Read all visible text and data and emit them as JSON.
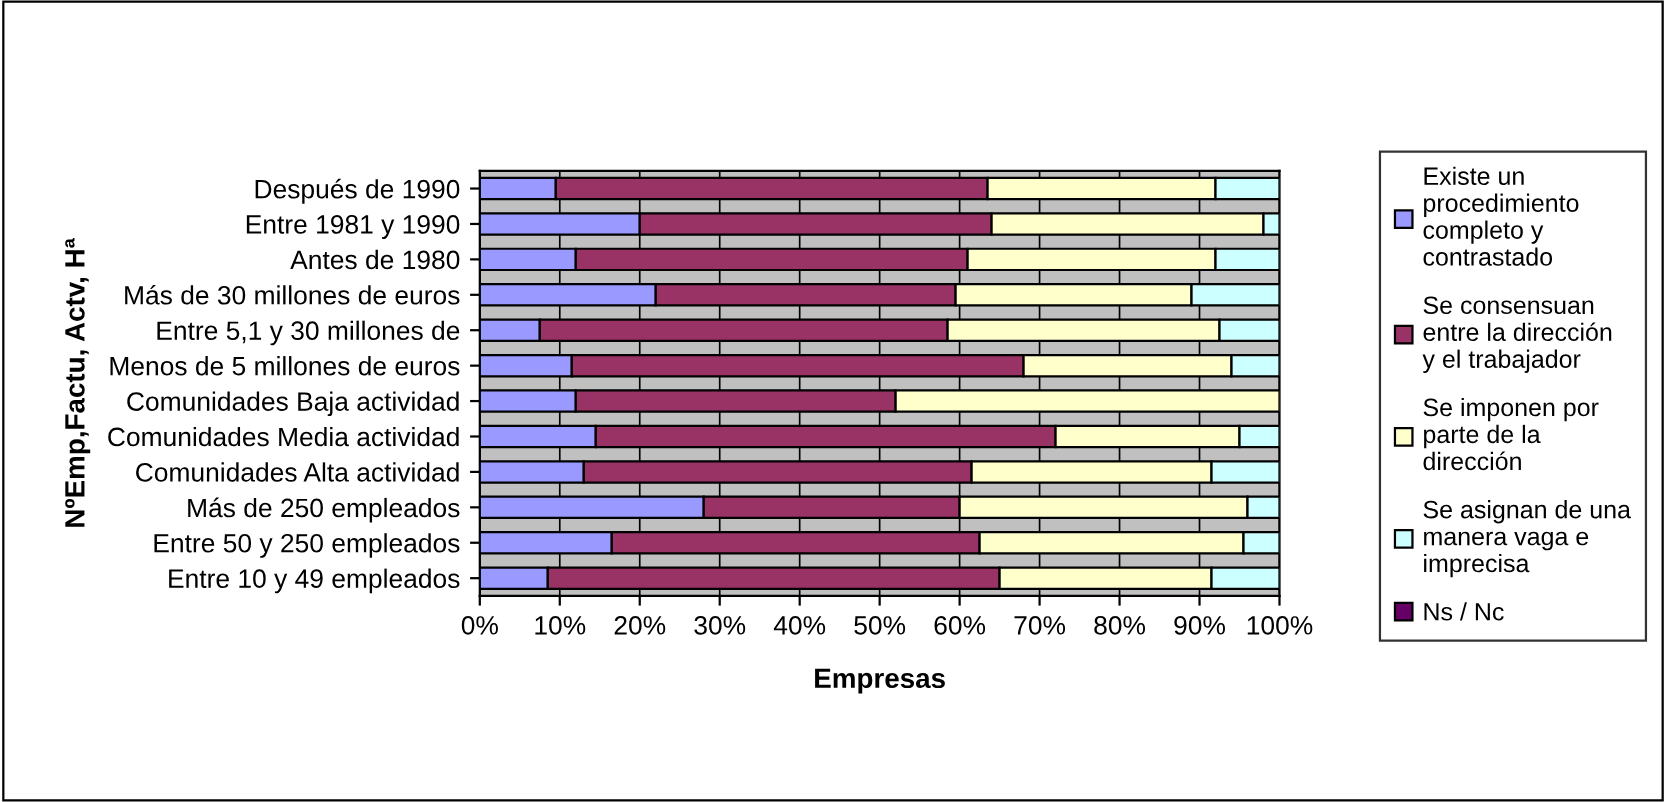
{
  "chart_data": {
    "type": "bar",
    "orientation": "horizontal",
    "stacked": true,
    "xlabel": "Empresas",
    "ylabel": "NºEmp,Factu, Actv, Hª",
    "categories": [
      "Después de 1990",
      "Entre 1981 y 1990",
      "Antes de 1980",
      "Más de 30 millones de euros",
      "Entre 5,1 y 30 millones de",
      "Menos de 5 millones de euros",
      "Comunidades Baja actividad",
      "Comunidades Media actividad",
      "Comunidades Alta actividad",
      "Más de 250 empleados",
      "Entre 50 y 250 empleados",
      "Entre 10 y 49 empleados"
    ],
    "series": [
      {
        "name": "Existe un procedimiento completo y contrastado",
        "color": "#9999ff",
        "values": [
          9.5,
          20,
          12,
          22,
          7.5,
          11.5,
          12,
          14.5,
          13,
          28,
          16.5,
          8.5
        ]
      },
      {
        "name": "Se consensuan entre la dirección y el trabajador",
        "color": "#993366",
        "values": [
          54,
          44,
          49,
          37.5,
          51,
          56.5,
          40,
          57.5,
          48.5,
          32,
          46,
          56.5
        ]
      },
      {
        "name": "Se imponen por parte de la dirección",
        "color": "#ffffcc",
        "values": [
          28.5,
          34,
          31,
          29.5,
          34,
          26,
          48,
          23,
          30,
          36,
          33,
          26.5
        ]
      },
      {
        "name": "Se asignan de una manera vaga e imprecisa",
        "color": "#ccffff",
        "values": [
          8,
          2,
          8,
          11,
          7.5,
          6,
          0,
          5,
          8.5,
          4,
          4.5,
          8.5
        ]
      },
      {
        "name": "Ns / Nc",
        "color": "#660066",
        "values": [
          0,
          0,
          0,
          0,
          0,
          0,
          0,
          0,
          0,
          0,
          0,
          0
        ]
      }
    ],
    "xlim": [
      0,
      100
    ],
    "xticks": [
      {
        "value": 0,
        "label": "0%"
      },
      {
        "value": 10,
        "label": "10%"
      },
      {
        "value": 20,
        "label": "20%"
      },
      {
        "value": 30,
        "label": "30%"
      },
      {
        "value": 40,
        "label": "40%"
      },
      {
        "value": 50,
        "label": "50%"
      },
      {
        "value": 60,
        "label": "60%"
      },
      {
        "value": 70,
        "label": "70%"
      },
      {
        "value": 80,
        "label": "80%"
      },
      {
        "value": 90,
        "label": "90%"
      },
      {
        "value": 100,
        "label": "100%"
      }
    ],
    "grid": "x",
    "legend": "right"
  }
}
